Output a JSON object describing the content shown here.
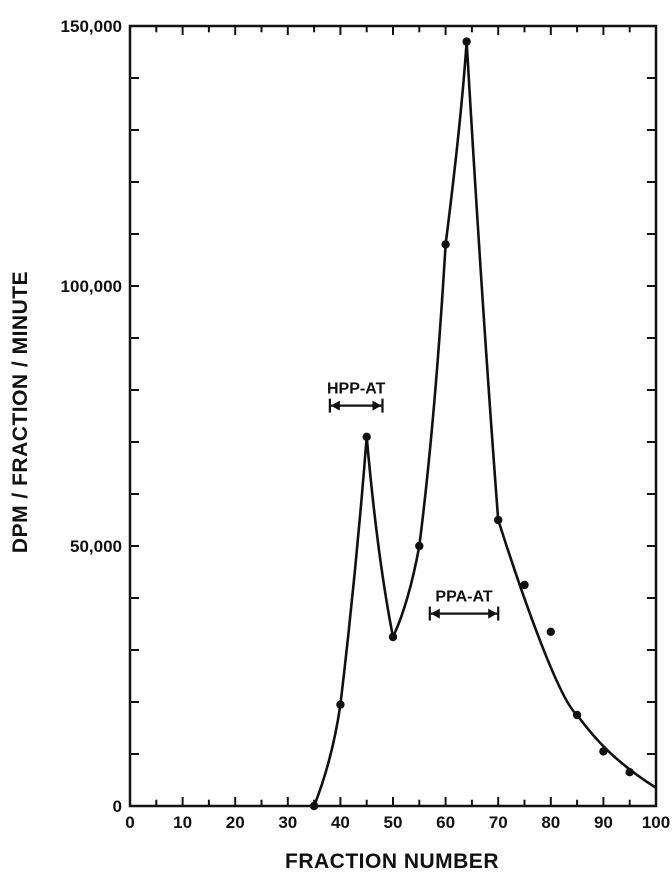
{
  "chart_data": {
    "type": "line",
    "xlabel": "FRACTION NUMBER",
    "ylabel": "DPM / FRACTION / MINUTE",
    "xlim": [
      0,
      100
    ],
    "ylim": [
      0,
      150000
    ],
    "x_ticks": [
      0,
      10,
      20,
      30,
      40,
      50,
      60,
      70,
      80,
      90,
      100
    ],
    "x_tick_labels": [
      "0",
      "10",
      "20",
      "30",
      "40",
      "50",
      "60",
      "70",
      "80",
      "90",
      "100"
    ],
    "y_ticks": [
      0,
      50000,
      100000,
      150000
    ],
    "y_tick_labels": [
      "0",
      "50,000",
      "100,000",
      "150,000"
    ],
    "grid": false,
    "series": [
      {
        "points": [
          {
            "x": 35,
            "y": 0
          },
          {
            "x": 40,
            "y": 19500
          },
          {
            "x": 45,
            "y": 71000
          },
          {
            "x": 50,
            "y": 32500
          },
          {
            "x": 55,
            "y": 50000
          },
          {
            "x": 60,
            "y": 108000
          },
          {
            "x": 64,
            "y": 147000
          },
          {
            "x": 70,
            "y": 55000
          },
          {
            "x": 75,
            "y": 42500
          },
          {
            "x": 80,
            "y": 33500
          },
          {
            "x": 85,
            "y": 17500
          },
          {
            "x": 90,
            "y": 10500
          },
          {
            "x": 95,
            "y": 6500
          }
        ],
        "curve_end": {
          "x": 100,
          "y": 3500
        }
      }
    ],
    "annotations": [
      {
        "label": "HPP-AT",
        "x_start": 38,
        "x_end": 48,
        "y": 77000
      },
      {
        "label": "PPA-AT",
        "x_start": 57,
        "x_end": 70,
        "y": 37000
      }
    ]
  }
}
